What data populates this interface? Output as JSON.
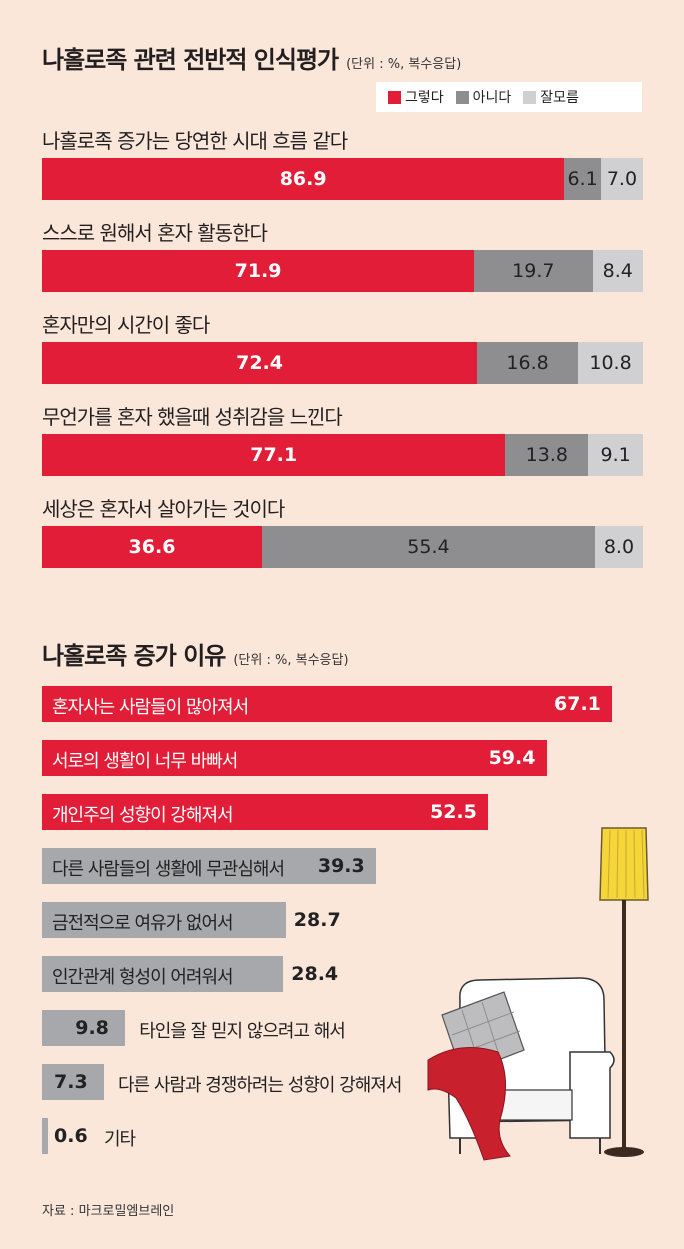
{
  "section1": {
    "title": "나홀로족 관련 전반적 인식평가",
    "unit": "(단위 : %, 복수응답)",
    "legend": [
      {
        "label": "그렇다",
        "color": "#e21d38"
      },
      {
        "label": "아니다",
        "color": "#8e8e90"
      },
      {
        "label": "잘모름",
        "color": "#d0d0d2"
      }
    ]
  },
  "section2": {
    "title": "나홀로족 증가 이유",
    "unit": "(단위 : %, 복수응답)"
  },
  "source": "자료 : 마크로밀엠브레인",
  "chart_data": [
    {
      "type": "bar",
      "orientation": "horizontal",
      "stacked": true,
      "title": "나홀로족 관련 전반적 인식평가",
      "categories": [
        "나홀로족 증가는 당연한 시대 흐름 같다",
        "스스로 원해서 혼자 활동한다",
        "혼자만의 시간이 좋다",
        "무언가를 혼자 했을때 성취감을 느낀다",
        "세상은 혼자서 살아가는 것이다"
      ],
      "series": [
        {
          "name": "그렇다",
          "values": [
            86.9,
            71.9,
            72.4,
            77.1,
            36.6
          ]
        },
        {
          "name": "아니다",
          "values": [
            6.1,
            19.7,
            16.8,
            13.8,
            55.4
          ]
        },
        {
          "name": "잘모름",
          "values": [
            7.0,
            8.4,
            10.8,
            9.1,
            8.0
          ]
        }
      ],
      "legend": "top-right"
    },
    {
      "type": "bar",
      "orientation": "horizontal",
      "title": "나홀로족 증가 이유",
      "categories": [
        "혼자사는 사람들이 많아져서",
        "서로의 생활이 너무 바빠서",
        "개인주의 성향이 강해져서",
        "다른 사람들의 생활에 무관심해서",
        "금전적으로 여유가 없어서",
        "인간관계 형성이 어려워서",
        "타인을 잘 믿지 않으려고 해서",
        "다른 사람과 경쟁하려는 성향이 강해져서",
        "기타"
      ],
      "values": [
        67.1,
        59.4,
        52.5,
        39.3,
        28.7,
        28.4,
        9.8,
        7.3,
        0.6
      ],
      "highlight_colors": [
        "#e21d38",
        "#e21d38",
        "#e21d38",
        "#a7a8ab",
        "#a7a8ab",
        "#a7a8ab",
        "#a7a8ab",
        "#a7a8ab",
        "#a7a8ab"
      ]
    }
  ]
}
